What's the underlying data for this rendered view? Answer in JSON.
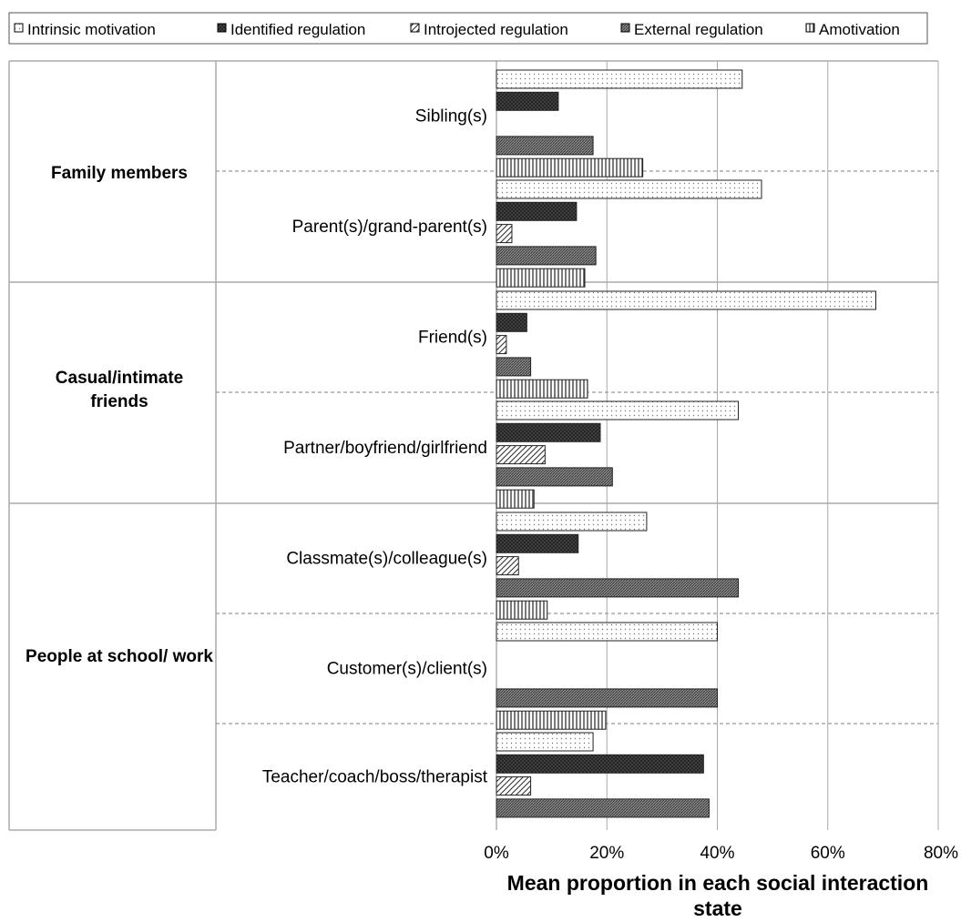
{
  "chart_data": {
    "type": "bar",
    "orientation": "horizontal",
    "xlabel": "Mean proportion in each social interaction state",
    "xlim": [
      0,
      80
    ],
    "x_ticks": [
      "0%",
      "20%",
      "40%",
      "60%",
      "80%"
    ],
    "grid": true,
    "legend_position": "top",
    "series": [
      {
        "name": "Intrinsic motivation",
        "pattern": "dots"
      },
      {
        "name": "Identified regulation",
        "pattern": "dark-crosshatch"
      },
      {
        "name": "Introjected regulation",
        "pattern": "diagonal-lines"
      },
      {
        "name": "External regulation",
        "pattern": "dense-diagonal"
      },
      {
        "name": "Amotivation",
        "pattern": "vertical-lines"
      }
    ],
    "groups": [
      {
        "label": "Family members",
        "categories": [
          {
            "label": "Sibling(s)",
            "values": [
              44.5,
              11.2,
              0,
              17.5,
              26.5
            ]
          },
          {
            "label": "Parent(s)/grand-parent(s)",
            "values": [
              48,
              14.5,
              2.8,
              18,
              16
            ]
          }
        ]
      },
      {
        "label": "Casual/intimate friends",
        "categories": [
          {
            "label": "Friend(s)",
            "values": [
              68.7,
              5.5,
              1.8,
              6.2,
              16.5
            ]
          },
          {
            "label": "Partner/boyfriend/girlfriend",
            "values": [
              43.8,
              18.8,
              8.8,
              21,
              6.8
            ]
          }
        ]
      },
      {
        "label": "People at school/ work",
        "categories": [
          {
            "label": "Classmate(s)/colleague(s)",
            "values": [
              27.2,
              14.8,
              4,
              43.8,
              9.2
            ]
          },
          {
            "label": "Customer(s)/client(s)",
            "values": [
              40,
              0,
              0,
              40,
              19.8
            ]
          },
          {
            "label": "Teacher/coach/boss/therapist",
            "values": [
              17.5,
              37.5,
              6.2,
              38.5,
              0
            ]
          }
        ]
      }
    ]
  }
}
